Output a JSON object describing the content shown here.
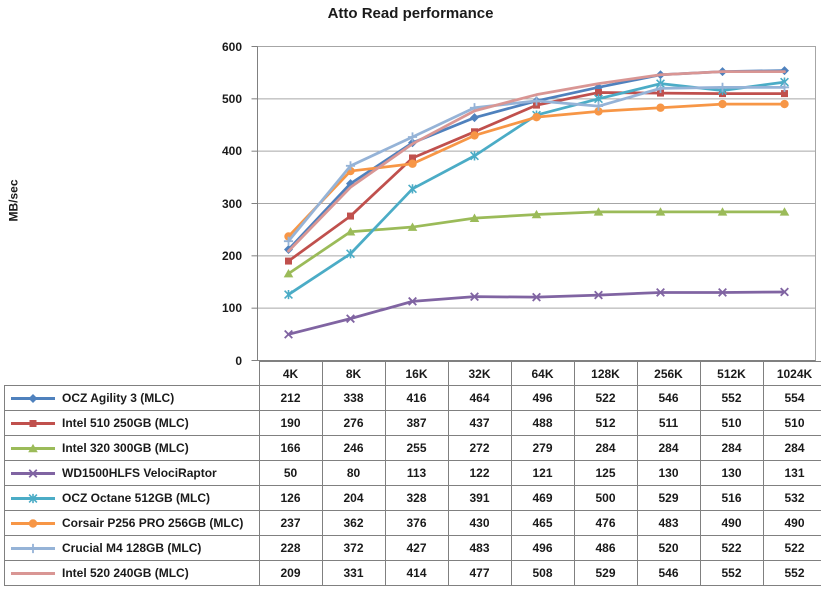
{
  "title": "Atto Read performance",
  "y_axis_label": "MB/sec",
  "colors": {
    "background": "#FFFFFF",
    "text": "#1a1a1a",
    "gridline": "#A6A6A6",
    "axis": "#808080",
    "table_border": "#808080"
  },
  "chart_data": {
    "type": "line",
    "title": "Atto Read performance",
    "xlabel": "",
    "ylabel": "MB/sec",
    "categories": [
      "4K",
      "8K",
      "16K",
      "32K",
      "64K",
      "128K",
      "256K",
      "512K",
      "1024K"
    ],
    "ylim": [
      0,
      600
    ],
    "yticks": [
      600,
      500,
      400,
      300,
      200,
      100,
      0
    ],
    "grid": "horizontal",
    "legend_position": "table-left-column",
    "series": [
      {
        "name": "OCZ Agility 3 (MLC)",
        "color": "#4F81BD",
        "marker": "diamond",
        "values": [
          212,
          338,
          416,
          464,
          496,
          522,
          546,
          552,
          554
        ]
      },
      {
        "name": "Intel 510 250GB (MLC)",
        "color": "#C0504D",
        "marker": "square",
        "values": [
          190,
          276,
          387,
          437,
          488,
          512,
          511,
          510,
          510
        ]
      },
      {
        "name": "Intel 320 300GB (MLC)",
        "color": "#9BBB59",
        "marker": "triangle",
        "values": [
          166,
          246,
          255,
          272,
          279,
          284,
          284,
          284,
          284
        ]
      },
      {
        "name": "WD1500HLFS VelociRaptor",
        "color": "#8064A2",
        "marker": "x",
        "values": [
          50,
          80,
          113,
          122,
          121,
          125,
          130,
          130,
          131
        ]
      },
      {
        "name": "OCZ Octane 512GB (MLC)",
        "color": "#4BACC6",
        "marker": "asterisk",
        "values": [
          126,
          204,
          328,
          391,
          469,
          500,
          529,
          516,
          532
        ]
      },
      {
        "name": "Corsair P256 PRO 256GB (MLC)",
        "color": "#F79646",
        "marker": "circle",
        "values": [
          237,
          362,
          376,
          430,
          465,
          476,
          483,
          490,
          490
        ]
      },
      {
        "name": "Crucial M4 128GB (MLC)",
        "color": "#95B3D7",
        "marker": "plus",
        "values": [
          228,
          372,
          427,
          483,
          496,
          486,
          520,
          522,
          522
        ]
      },
      {
        "name": "Intel 520 240GB (MLC)",
        "color": "#D99694",
        "marker": "none",
        "values": [
          209,
          331,
          414,
          477,
          508,
          529,
          546,
          552,
          552
        ]
      }
    ]
  }
}
